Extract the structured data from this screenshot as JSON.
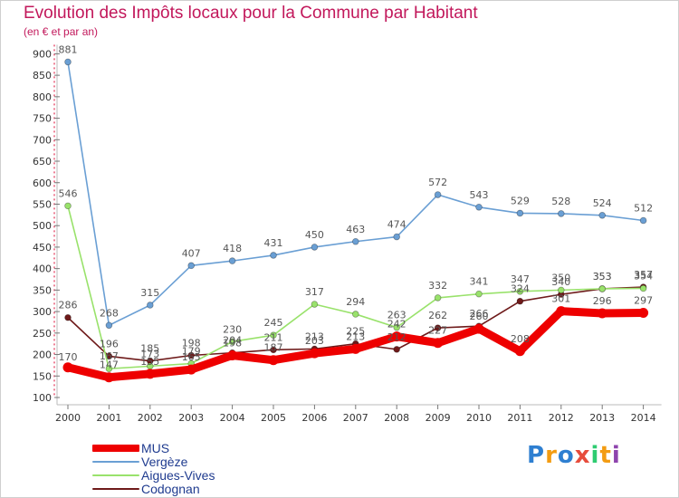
{
  "title": "Evolution des Impôts locaux pour la Commune par Habitant",
  "subtitle": "(en € et par an)",
  "chart_data": {
    "type": "line",
    "x": [
      "2000",
      "2001",
      "2002",
      "2003",
      "2004",
      "2005",
      "2006",
      "2007",
      "2008",
      "2009",
      "2010",
      "2011",
      "2012",
      "2013",
      "2014"
    ],
    "ylim": [
      100,
      900
    ],
    "yticks": [
      100,
      150,
      200,
      250,
      300,
      350,
      400,
      450,
      500,
      550,
      600,
      650,
      700,
      750,
      800,
      850,
      900
    ],
    "grid": false,
    "legend_position": "bottom-left",
    "series": [
      {
        "name": "MUS",
        "color": "#ee0000",
        "values": [
          170,
          147,
          155,
          165,
          198,
          187,
          203,
          213,
          242,
          227,
          260,
          208,
          301,
          296,
          297
        ]
      },
      {
        "name": "Vergèze",
        "color": "#6a9fd4",
        "values": [
          881,
          268,
          315,
          407,
          418,
          431,
          450,
          463,
          474,
          572,
          543,
          529,
          528,
          524,
          512
        ]
      },
      {
        "name": "Aigues-Vives",
        "color": "#99e26b",
        "values": [
          546,
          167,
          173,
          179,
          230,
          245,
          317,
          294,
          263,
          332,
          341,
          347,
          350,
          353,
          354
        ]
      },
      {
        "name": "Codognan",
        "color": "#6e1a1a",
        "values": [
          286,
          196,
          185,
          198,
          204,
          211,
          213,
          225,
          212,
          262,
          266,
          324,
          340,
          353,
          357
        ]
      }
    ]
  },
  "logo": {
    "letters": [
      "P",
      "r",
      "o",
      "x",
      "i",
      "t",
      "i"
    ],
    "colors": [
      "#2e7fd1",
      "#f39c12",
      "#2e7fd1",
      "#e74c3c",
      "#2ecc71",
      "#f39c12",
      "#8e44ad"
    ]
  }
}
